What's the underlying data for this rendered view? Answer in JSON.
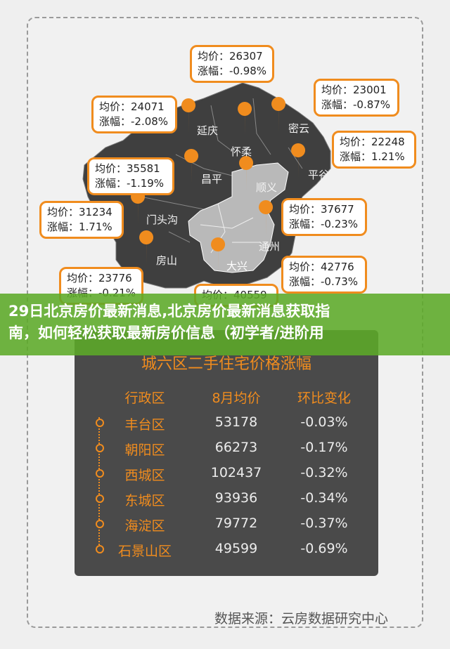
{
  "banner": {
    "line1": "29日北京房价最新消息,北京房价最新消息获取指",
    "line2": "南，如何轻松获取最新房价信息（初学者/进阶用"
  },
  "districts": [
    {
      "name": "延庆"
    },
    {
      "name": "怀柔"
    },
    {
      "name": "密云"
    },
    {
      "name": "昌平"
    },
    {
      "name": "顺义"
    },
    {
      "name": "平谷"
    },
    {
      "name": "门头沟"
    },
    {
      "name": "通州"
    },
    {
      "name": "房山"
    },
    {
      "name": "大兴"
    }
  ],
  "callouts": [
    {
      "price": "均价：26307",
      "change": "涨幅：-0.98%"
    },
    {
      "price": "均价：24071",
      "change": "涨幅：-2.08%"
    },
    {
      "price": "均价：23001",
      "change": "涨幅：-0.87%"
    },
    {
      "price": "均价：22248",
      "change": "涨幅：1.21%"
    },
    {
      "price": "均价：35581",
      "change": "涨幅：-1.19%"
    },
    {
      "price": "均价：31234",
      "change": "涨幅：1.71%"
    },
    {
      "price": "均价：37677",
      "change": "涨幅：-0.23%"
    },
    {
      "price": "均价：42776",
      "change": "涨幅：-0.73%"
    },
    {
      "price": "均价：23776",
      "change": "涨幅：-0.21%"
    },
    {
      "price": "均价：40559",
      "change": ""
    }
  ],
  "table": {
    "title": "城六区二手住宅价格涨幅",
    "headers": [
      "行政区",
      "8月均价",
      "环比变化"
    ],
    "rows": [
      [
        "丰台区",
        "53178",
        "-0.03%"
      ],
      [
        "朝阳区",
        "66273",
        "-0.17%"
      ],
      [
        "西城区",
        "102437",
        "-0.32%"
      ],
      [
        "东城区",
        "93936",
        "-0.34%"
      ],
      [
        "海淀区",
        "79772",
        "-0.37%"
      ],
      [
        "石景山区",
        "49599",
        "-0.69%"
      ]
    ]
  },
  "source": "数据来源：云房数据研究中心",
  "colors": {
    "accent": "#f08c1e",
    "map_dark": "#3f3f3f",
    "map_light": "#b9b9b9",
    "banner": "#5caa28"
  }
}
